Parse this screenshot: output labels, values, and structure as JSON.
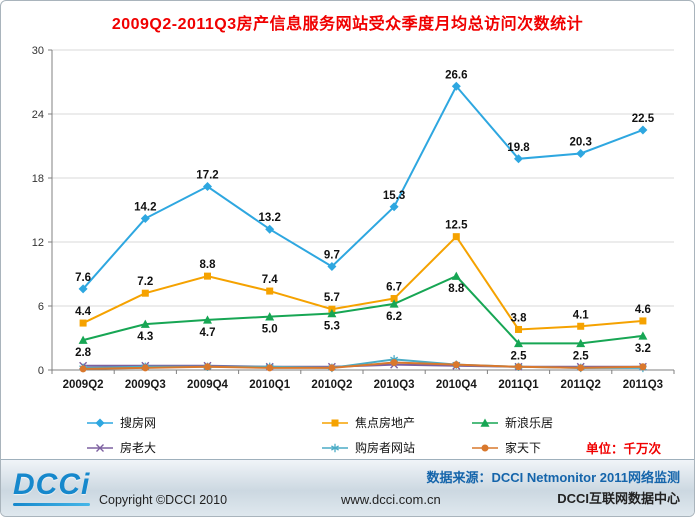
{
  "title": "2009Q2-2011Q3房产信息服务网站受众季度月均总访问次数统计",
  "chart_data": {
    "type": "line",
    "title": "2009Q2-2011Q3房产信息服务网站受众季度月均总访问次数统计",
    "categories": [
      "2009Q2",
      "2009Q3",
      "2009Q4",
      "2010Q1",
      "2010Q2",
      "2010Q3",
      "2010Q4",
      "2011Q1",
      "2011Q2",
      "2011Q3"
    ],
    "series": [
      {
        "name": "搜房网",
        "color": "#2EA7E0",
        "marker": "diamond",
        "show_labels": true,
        "label_pos": "above",
        "values": [
          7.6,
          14.2,
          17.2,
          13.2,
          9.7,
          15.3,
          26.6,
          19.8,
          20.3,
          22.5
        ]
      },
      {
        "name": "焦点房地产",
        "color": "#F5A200",
        "marker": "square",
        "show_labels": true,
        "label_pos": "above",
        "values": [
          4.4,
          7.2,
          8.8,
          7.4,
          5.7,
          6.7,
          12.5,
          3.8,
          4.1,
          4.6
        ]
      },
      {
        "name": "新浪乐居",
        "color": "#17A654",
        "marker": "triangle",
        "show_labels": true,
        "label_pos": "below",
        "values": [
          2.8,
          4.3,
          4.7,
          5.0,
          5.3,
          6.2,
          8.8,
          2.5,
          2.5,
          3.2
        ]
      },
      {
        "name": "房老大",
        "color": "#7D60A0",
        "marker": "x",
        "show_labels": false,
        "values": [
          0.4,
          0.4,
          0.4,
          0.3,
          0.3,
          0.5,
          0.4,
          0.3,
          0.3,
          0.3
        ]
      },
      {
        "name": "购房者网站",
        "color": "#4BACC6",
        "marker": "asterisk",
        "show_labels": false,
        "values": [
          0.2,
          0.3,
          0.3,
          0.3,
          0.2,
          1.0,
          0.5,
          0.3,
          0.2,
          0.2
        ]
      },
      {
        "name": "家天下",
        "color": "#D9782D",
        "marker": "circle",
        "show_labels": false,
        "values": [
          0.1,
          0.2,
          0.3,
          0.2,
          0.2,
          0.7,
          0.5,
          0.3,
          0.2,
          0.3
        ]
      }
    ],
    "ylim": [
      0,
      30
    ],
    "yticks": [
      0,
      6,
      12,
      18,
      24,
      30
    ],
    "grid": true,
    "legend_position": "bottom",
    "unit_label": "单位：千万次"
  },
  "footer": {
    "logo_text": "DCCi",
    "copyright": "Copyright ©DCCI 2010",
    "url": "www.dcci.com.cn",
    "source": "数据来源：DCCI Netmonitor 2011网络监测",
    "org": "DCCI互联网数据中心"
  }
}
